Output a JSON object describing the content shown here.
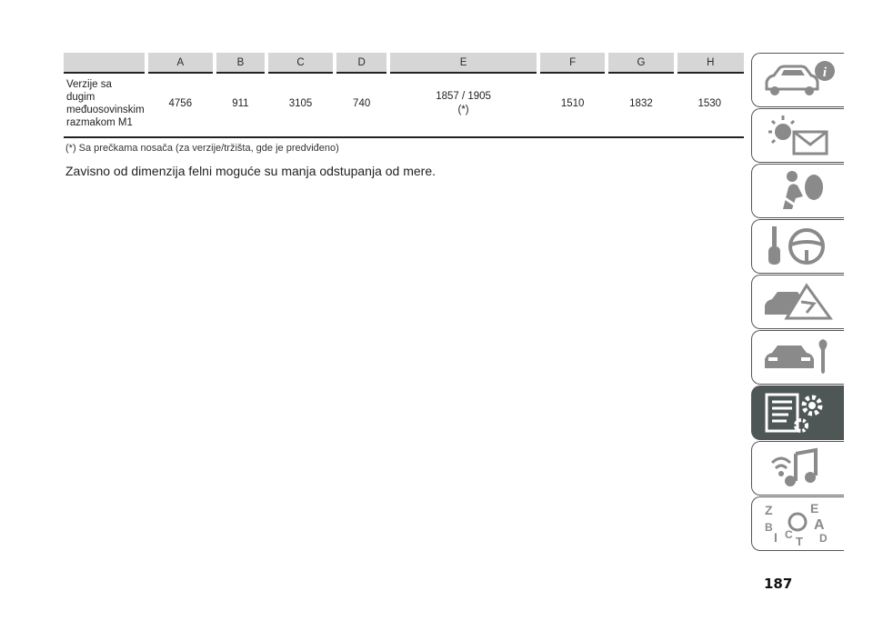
{
  "table": {
    "headers": [
      "A",
      "B",
      "C",
      "D",
      "E",
      "F",
      "G",
      "H"
    ],
    "row": {
      "label_lines": [
        "Verzije sa",
        "dugim",
        "međuosovinskim",
        "razmakom M1"
      ],
      "values": [
        "4756",
        "911",
        "3105",
        "740",
        "1857 / 1905\n(*)",
        "1510",
        "1832",
        "1530"
      ]
    }
  },
  "footnote": "(*) Sa prečkama nosača (za verzije/tržišta, gde je predviđeno)",
  "note": "Zavisno od dimenzija felni moguće su manja odstupanja od mere.",
  "page_number": "187",
  "side_tabs": [
    {
      "icon": "car-info-icon",
      "active": false
    },
    {
      "icon": "warning-lights-icon",
      "active": false
    },
    {
      "icon": "airbag-safety-icon",
      "active": false
    },
    {
      "icon": "key-steering-wheel-icon",
      "active": false
    },
    {
      "icon": "emergency-triangle-icon",
      "active": false
    },
    {
      "icon": "car-maintenance-icon",
      "active": false
    },
    {
      "icon": "technical-data-icon",
      "active": true
    },
    {
      "icon": "multimedia-icon",
      "active": false
    },
    {
      "icon": "alphabetical-index-icon",
      "active": false
    }
  ],
  "colors": {
    "active_tab": "#4f5656",
    "header_bg": "#d6d6d6"
  }
}
